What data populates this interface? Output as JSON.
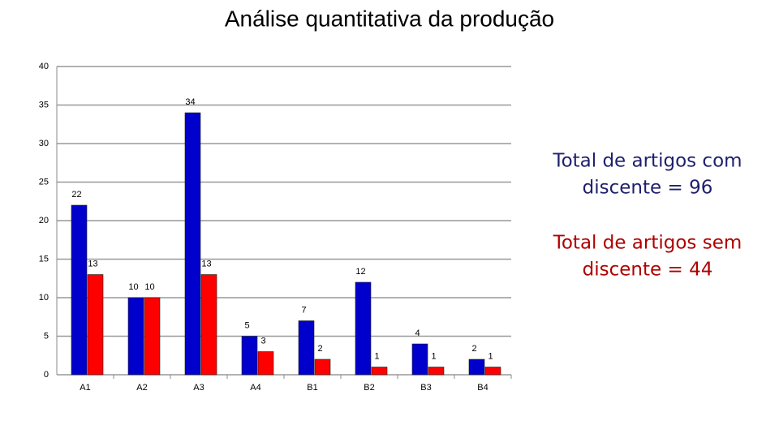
{
  "chart_data": {
    "type": "bar",
    "title": "Análise quantitativa da produção",
    "categories": [
      "A1",
      "A2",
      "A3",
      "A4",
      "B1",
      "B2",
      "B3",
      "B4"
    ],
    "series": [
      {
        "color": "#0000cc",
        "values": [
          22,
          10,
          34,
          5,
          7,
          12,
          4,
          2
        ]
      },
      {
        "color": "#ff0000",
        "values": [
          13,
          10,
          13,
          3,
          2,
          1,
          1,
          1
        ]
      }
    ],
    "ylim": [
      0,
      40
    ],
    "yticks": [
      0,
      5,
      10,
      15,
      20,
      25,
      30,
      35,
      40
    ],
    "grid": true,
    "annotations": [
      {
        "lines": [
          "Total de artigos com",
          "discente = 96"
        ],
        "color": "#1f1f6e"
      },
      {
        "lines": [
          "Total de artigos sem",
          "discente = 44"
        ],
        "color": "#b00000"
      }
    ]
  }
}
